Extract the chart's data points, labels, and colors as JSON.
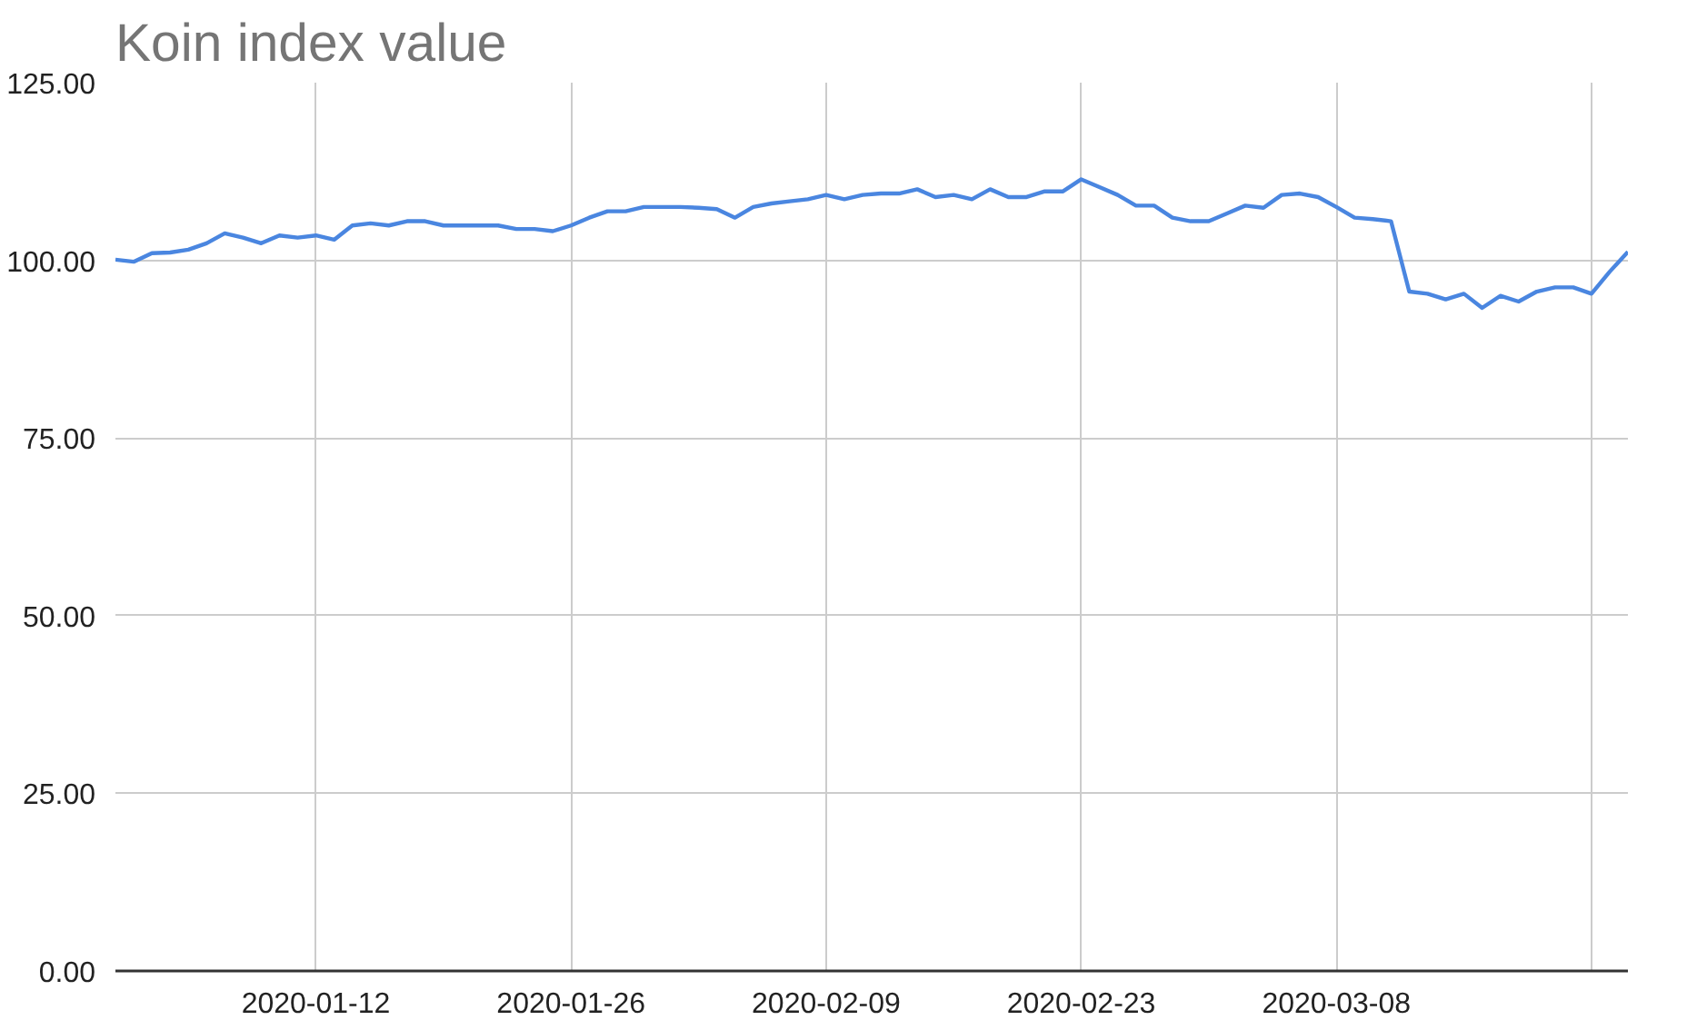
{
  "chart_data": {
    "type": "line",
    "title": "Koin index value",
    "x": [
      "2020-01-01",
      "2020-01-02",
      "2020-01-03",
      "2020-01-04",
      "2020-01-05",
      "2020-01-06",
      "2020-01-07",
      "2020-01-08",
      "2020-01-09",
      "2020-01-10",
      "2020-01-11",
      "2020-01-12",
      "2020-01-13",
      "2020-01-14",
      "2020-01-15",
      "2020-01-16",
      "2020-01-17",
      "2020-01-18",
      "2020-01-19",
      "2020-01-20",
      "2020-01-21",
      "2020-01-22",
      "2020-01-23",
      "2020-01-24",
      "2020-01-25",
      "2020-01-26",
      "2020-01-27",
      "2020-01-28",
      "2020-01-29",
      "2020-01-30",
      "2020-01-31",
      "2020-02-01",
      "2020-02-02",
      "2020-02-03",
      "2020-02-04",
      "2020-02-05",
      "2020-02-06",
      "2020-02-07",
      "2020-02-08",
      "2020-02-09",
      "2020-02-10",
      "2020-02-11",
      "2020-02-12",
      "2020-02-13",
      "2020-02-14",
      "2020-02-15",
      "2020-02-16",
      "2020-02-17",
      "2020-02-18",
      "2020-02-19",
      "2020-02-20",
      "2020-02-21",
      "2020-02-22",
      "2020-02-23",
      "2020-02-24",
      "2020-02-25",
      "2020-02-26",
      "2020-02-27",
      "2020-02-28",
      "2020-02-29",
      "2020-03-01",
      "2020-03-02",
      "2020-03-03",
      "2020-03-04",
      "2020-03-05",
      "2020-03-06",
      "2020-03-07",
      "2020-03-08",
      "2020-03-09",
      "2020-03-10",
      "2020-03-11",
      "2020-03-12",
      "2020-03-13",
      "2020-03-14",
      "2020-03-15",
      "2020-03-16",
      "2020-03-17",
      "2020-03-18",
      "2020-03-19",
      "2020-03-20",
      "2020-03-21",
      "2020-03-22",
      "2020-03-23",
      "2020-03-24"
    ],
    "series": [
      {
        "color": "#4a86e0",
        "values": [
          100.1,
          99.8,
          101,
          101.1,
          101.5,
          102.4,
          103.8,
          103.2,
          102.4,
          103.5,
          103.2,
          103.5,
          102.9,
          104.9,
          105.2,
          104.9,
          105.5,
          105.5,
          104.9,
          104.9,
          104.9,
          104.9,
          104.4,
          104.4,
          104.1,
          104.9,
          106,
          106.9,
          106.9,
          107.5,
          107.5,
          107.5,
          107.4,
          107.2,
          106,
          107.5,
          108,
          108.3,
          108.6,
          109.2,
          108.6,
          109.2,
          109.4,
          109.4,
          110,
          108.9,
          109.2,
          108.6,
          110,
          108.9,
          108.9,
          109.7,
          109.7,
          111.4,
          110.3,
          109.2,
          107.7,
          107.7,
          106,
          105.5,
          105.5,
          106.6,
          107.7,
          107.4,
          109.2,
          109.4,
          108.9,
          107.5,
          106,
          105.8,
          105.5,
          95.6,
          95.3,
          94.5,
          95.3,
          93.3,
          95,
          94.2,
          95.6,
          96.2,
          96.2,
          95.3,
          98.4,
          101.2
        ]
      }
    ],
    "xlim": [
      "2020-01-01",
      "2020-03-24"
    ],
    "xticks": [
      {
        "value": "2020-01-12",
        "label": "2020-01-12"
      },
      {
        "value": "2020-01-26",
        "label": "2020-01-26"
      },
      {
        "value": "2020-02-09",
        "label": "2020-02-09"
      },
      {
        "value": "2020-02-23",
        "label": "2020-02-23"
      },
      {
        "value": "2020-03-08",
        "label": "2020-03-08"
      },
      {
        "value": "2020-03-22",
        "label": null
      }
    ],
    "ylim": [
      0,
      125
    ],
    "yticks": [
      {
        "value": 0,
        "label": "0.00"
      },
      {
        "value": 25,
        "label": "25.00"
      },
      {
        "value": 50,
        "label": "50.00"
      },
      {
        "value": 75,
        "label": "75.00"
      },
      {
        "value": 100,
        "label": "100.00"
      },
      {
        "value": 125,
        "label": "125.00"
      }
    ],
    "grid": true,
    "marker": "none",
    "line_style": "solid"
  }
}
